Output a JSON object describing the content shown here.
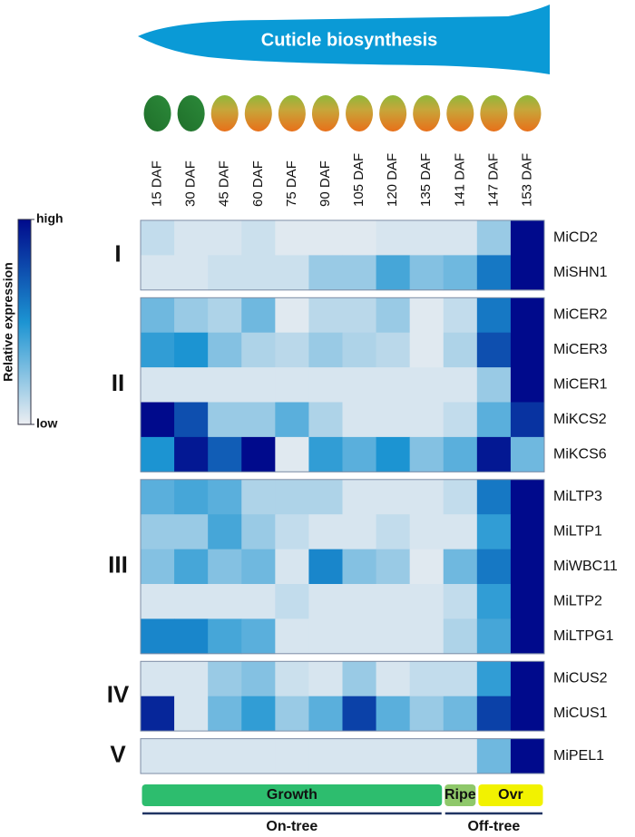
{
  "chart_data": {
    "type": "heatmap",
    "title": "Cuticle biosynthesis",
    "categories": [
      "15 DAF",
      "30 DAF",
      "45 DAF",
      "60 DAF",
      "75 DAF",
      "90 DAF",
      "105 DAF",
      "120 DAF",
      "135 DAF",
      "141 DAF",
      "147 DAF",
      "153 DAF"
    ],
    "colorbar": {
      "label": "Relative expression",
      "ticks": [
        {
          "value": 0,
          "label": "low"
        },
        {
          "value": 1,
          "label": "high"
        }
      ],
      "colors": [
        "#eceef2",
        "#1c94d2",
        "#000a8c"
      ]
    },
    "groups": [
      {
        "name": "I",
        "rows": [
          "MiCD2",
          "MiSHN1"
        ],
        "values": [
          [
            0.1,
            0.05,
            0.05,
            0.08,
            0.03,
            0.03,
            0.03,
            0.05,
            0.05,
            0.05,
            0.2,
            1
          ],
          [
            0.05,
            0.05,
            0.08,
            0.08,
            0.08,
            0.2,
            0.2,
            0.4,
            0.25,
            0.3,
            0.6,
            1
          ]
        ]
      },
      {
        "name": "II",
        "rows": [
          "MiCER2",
          "MiCER3",
          "MiCER1",
          "MiKCS2",
          "MiKCS6"
        ],
        "values": [
          [
            0.3,
            0.2,
            0.15,
            0.3,
            0.03,
            0.12,
            0.12,
            0.2,
            0.03,
            0.1,
            0.6,
            1
          ],
          [
            0.45,
            0.5,
            0.25,
            0.15,
            0.12,
            0.2,
            0.15,
            0.12,
            0.03,
            0.15,
            0.75,
            1
          ],
          [
            0.05,
            0.05,
            0.05,
            0.05,
            0.05,
            0.05,
            0.05,
            0.05,
            0.05,
            0.05,
            0.2,
            1
          ],
          [
            1,
            0.75,
            0.2,
            0.2,
            0.35,
            0.15,
            0.05,
            0.05,
            0.05,
            0.1,
            0.35,
            0.85
          ],
          [
            0.5,
            0.95,
            0.7,
            1,
            0.03,
            0.45,
            0.35,
            0.5,
            0.25,
            0.35,
            0.95,
            0.3
          ]
        ]
      },
      {
        "name": "III",
        "rows": [
          "MiLTP3",
          "MiLTP1",
          "MiWBC11",
          "MiLTP2",
          "MiLTPG1"
        ],
        "values": [
          [
            0.35,
            0.4,
            0.35,
            0.15,
            0.15,
            0.15,
            0.05,
            0.05,
            0.05,
            0.1,
            0.6,
            1
          ],
          [
            0.2,
            0.2,
            0.4,
            0.2,
            0.1,
            0.05,
            0.05,
            0.1,
            0.05,
            0.05,
            0.45,
            1
          ],
          [
            0.25,
            0.4,
            0.25,
            0.3,
            0.05,
            0.55,
            0.25,
            0.2,
            0.03,
            0.3,
            0.6,
            1
          ],
          [
            0.05,
            0.05,
            0.05,
            0.05,
            0.1,
            0.05,
            0.05,
            0.05,
            0.05,
            0.1,
            0.45,
            1
          ],
          [
            0.55,
            0.55,
            0.4,
            0.35,
            0.05,
            0.05,
            0.05,
            0.05,
            0.05,
            0.15,
            0.4,
            1
          ]
        ]
      },
      {
        "name": "IV",
        "rows": [
          "MiCUS2",
          "MiCUS1"
        ],
        "values": [
          [
            0.05,
            0.05,
            0.2,
            0.25,
            0.08,
            0.05,
            0.2,
            0.05,
            0.1,
            0.1,
            0.45,
            1
          ],
          [
            0.9,
            0.05,
            0.3,
            0.45,
            0.2,
            0.35,
            0.8,
            0.35,
            0.2,
            0.3,
            0.8,
            1
          ]
        ]
      },
      {
        "name": "V",
        "rows": [
          "MiPEL1"
        ],
        "values": [
          [
            0.05,
            0.05,
            0.05,
            0.05,
            0.05,
            0.05,
            0.05,
            0.05,
            0.05,
            0.05,
            0.3,
            1
          ]
        ]
      }
    ],
    "phases": [
      {
        "name": "Growth",
        "from": "15 DAF",
        "to": "135 DAF",
        "color": "#2dbd6e"
      },
      {
        "name": "Ripe",
        "from": "141 DAF",
        "to": "141 DAF",
        "color": "#8fc86a"
      },
      {
        "name": "Ovr",
        "from": "147 DAF",
        "to": "153 DAF",
        "color": "#f2f200"
      }
    ],
    "locations": [
      {
        "name": "On-tree",
        "from": "15 DAF",
        "to": "135 DAF"
      },
      {
        "name": "Off-tree",
        "from": "141 DAF",
        "to": "153 DAF"
      }
    ]
  }
}
